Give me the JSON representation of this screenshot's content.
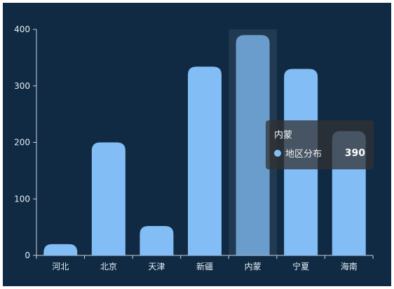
{
  "colors": {
    "background": "#102a43",
    "bar": "#83bdf5",
    "tooltip_bg": "#323232",
    "axis": "#c8d3de"
  },
  "chart_data": {
    "type": "bar",
    "categories": [
      "河北",
      "北京",
      "天津",
      "新疆",
      "内蒙",
      "宁夏",
      "海南"
    ],
    "series": [
      {
        "name": "地区分布",
        "values": [
          20,
          200,
          52,
          334,
          390,
          330,
          220
        ]
      }
    ],
    "ylim": [
      0,
      400
    ],
    "yticks": [
      "0",
      "100",
      "200",
      "300",
      "400"
    ],
    "grid": false,
    "legend": "none",
    "highlighted_category": "内蒙"
  },
  "tooltip": {
    "title": "内蒙",
    "series_name": "地区分布",
    "value": "390"
  }
}
